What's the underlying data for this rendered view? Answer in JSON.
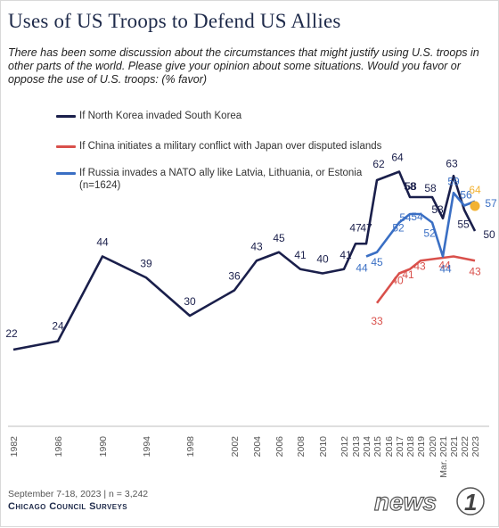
{
  "header": {
    "title": "Uses of US Troops to Defend US Allies",
    "subtitle": "There has been some discussion about the circumstances that might justify using U.S. troops in other parts of the world. Please give your opinion about some situations. Would you favor or oppose the use of U.S. troops: (% favor)"
  },
  "footer": {
    "note": "September 7-18, 2023 | n = 3,242",
    "brand": "Chicago Council Surveys"
  },
  "watermark": {
    "text": "news",
    "number": "1"
  },
  "chart_data": {
    "type": "line",
    "xlabel": "",
    "ylabel": "",
    "x_categories": [
      "1982",
      "1986",
      "1990",
      "1994",
      "1998",
      "2002",
      "2004",
      "2006",
      "2008",
      "2010",
      "2012",
      "2013",
      "2014",
      "2015",
      "2016",
      "2017",
      "2018",
      "2019",
      "2020",
      "Mar. 2021",
      "2021",
      "2022",
      "2023"
    ],
    "grid": false,
    "legend_position": "top-left",
    "series": [
      {
        "name": "If North Korea invaded South Korea",
        "color": "#1a1f4b",
        "points": [
          {
            "x": "1982",
            "y": 22
          },
          {
            "x": "1986",
            "y": 24
          },
          {
            "x": "1990",
            "y": 44
          },
          {
            "x": "1994",
            "y": 39
          },
          {
            "x": "1998",
            "y": 30
          },
          {
            "x": "2002",
            "y": 36
          },
          {
            "x": "2004",
            "y": 43
          },
          {
            "x": "2006",
            "y": 45
          },
          {
            "x": "2008",
            "y": 41
          },
          {
            "x": "2010",
            "y": 40
          },
          {
            "x": "2012",
            "y": 41
          },
          {
            "x": "2013",
            "y": 47
          },
          {
            "x": "2014",
            "y": 47
          },
          {
            "x": "2015",
            "y": 62
          },
          {
            "x": "2017",
            "y": 64
          },
          {
            "x": "2018",
            "y": 58
          },
          {
            "x": "2019",
            "y": 58
          },
          {
            "x": "2020",
            "y": 58
          },
          {
            "x": "Mar. 2021",
            "y": 53
          },
          {
            "x": "2021",
            "y": 63
          },
          {
            "x": "2022",
            "y": 55
          },
          {
            "x": "2023",
            "y": 50
          }
        ]
      },
      {
        "name": "If China initiates a military conflict with Japan over disputed islands",
        "color": "#d9504b",
        "points": [
          {
            "x": "2015",
            "y": 33
          },
          {
            "x": "2017",
            "y": 40
          },
          {
            "x": "2018",
            "y": 41
          },
          {
            "x": "2019",
            "y": 43
          },
          {
            "x": "2021",
            "y": 44
          },
          {
            "x": "2023",
            "y": 43
          }
        ]
      },
      {
        "name": "If Russia invades a NATO ally like Latvia, Lithuania, or Estonia",
        "name_note": "(n=1624)",
        "color": "#3a6fc4",
        "points": [
          {
            "x": "2014",
            "y": 44
          },
          {
            "x": "2015",
            "y": 45
          },
          {
            "x": "2017",
            "y": 52
          },
          {
            "x": "2018",
            "y": 54
          },
          {
            "x": "2019",
            "y": 54
          },
          {
            "x": "2020",
            "y": 52
          },
          {
            "x": "Mar. 2021",
            "y": 44
          },
          {
            "x": "2021",
            "y": 59
          },
          {
            "x": "2022",
            "y": 56
          },
          {
            "x": "2023",
            "y": 57
          }
        ]
      }
    ],
    "annotations": [
      {
        "label": "64",
        "x": "2023",
        "y": 64,
        "color": "#f2b233",
        "marker": "dot"
      }
    ]
  }
}
